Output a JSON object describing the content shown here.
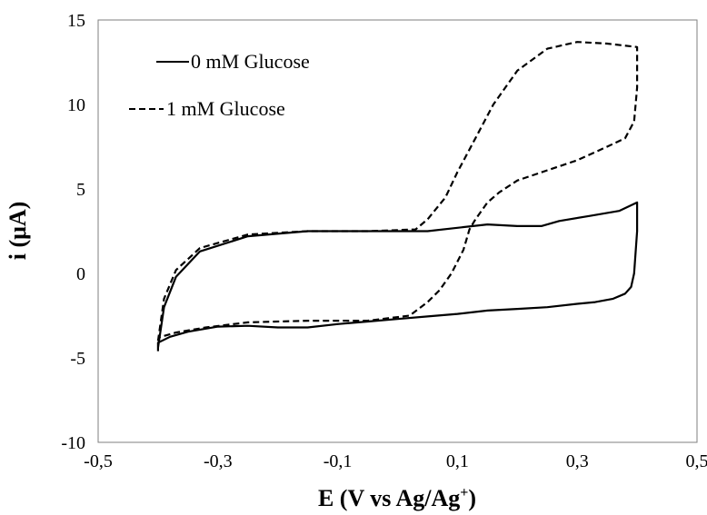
{
  "chart_data": {
    "type": "line",
    "title": "",
    "xlabel_parts": {
      "main": "E (V vs Ag/Ag",
      "sup": "+",
      "end": ")"
    },
    "ylabel": "i (μA)",
    "xlim": [
      -0.5,
      0.5
    ],
    "ylim": [
      -10,
      15
    ],
    "xticks": [
      -0.5,
      -0.3,
      -0.1,
      0.1,
      0.3,
      0.5
    ],
    "xtick_labels": [
      "-0,5",
      "-0,3",
      "-0,1",
      "0,1",
      "0,3",
      "0,5"
    ],
    "yticks": [
      -10,
      -5,
      0,
      5,
      10,
      15
    ],
    "ytick_labels": [
      "-10",
      "-5",
      "0",
      "5",
      "10",
      "15"
    ],
    "grid": false,
    "legend_position": "top-left",
    "series": [
      {
        "name": "0 mM Glucose",
        "style": "solid",
        "color": "#000000",
        "x": [
          -0.4,
          -0.39,
          -0.37,
          -0.33,
          -0.25,
          -0.15,
          -0.05,
          0.05,
          0.1,
          0.15,
          0.2,
          0.24,
          0.27,
          0.32,
          0.37,
          0.4,
          0.4,
          0.395,
          0.39,
          0.38,
          0.36,
          0.33,
          0.3,
          0.25,
          0.2,
          0.15,
          0.1,
          0.05,
          0.0,
          -0.05,
          -0.1,
          -0.15,
          -0.2,
          -0.25,
          -0.3,
          -0.35,
          -0.38,
          -0.4,
          -0.4
        ],
        "y": [
          -4.4,
          -2.0,
          -0.2,
          1.3,
          2.2,
          2.5,
          2.5,
          2.5,
          2.7,
          2.9,
          2.8,
          2.8,
          3.1,
          3.4,
          3.7,
          4.2,
          2.5,
          0.0,
          -0.8,
          -1.2,
          -1.5,
          -1.7,
          -1.8,
          -2.0,
          -2.1,
          -2.2,
          -2.4,
          -2.55,
          -2.7,
          -2.85,
          -3.0,
          -3.2,
          -3.2,
          -3.1,
          -3.15,
          -3.45,
          -3.75,
          -4.1,
          -4.6
        ]
      },
      {
        "name": "1 mM Glucose",
        "style": "dashed",
        "color": "#000000",
        "x": [
          -0.4,
          -0.39,
          -0.37,
          -0.33,
          -0.25,
          -0.15,
          -0.05,
          0.03,
          0.05,
          0.08,
          0.1,
          0.13,
          0.16,
          0.2,
          0.25,
          0.3,
          0.35,
          0.4,
          0.4,
          0.395,
          0.38,
          0.35,
          0.3,
          0.25,
          0.2,
          0.17,
          0.15,
          0.13,
          0.12,
          0.11,
          0.09,
          0.07,
          0.05,
          0.02,
          -0.05,
          -0.15,
          -0.25,
          -0.32,
          -0.37,
          -0.4
        ],
        "y": [
          -4.0,
          -1.5,
          0.2,
          1.5,
          2.3,
          2.5,
          2.5,
          2.6,
          3.2,
          4.5,
          6.0,
          8.0,
          10.0,
          12.0,
          13.3,
          13.7,
          13.6,
          13.4,
          11.0,
          9.0,
          8.0,
          7.5,
          6.7,
          6.1,
          5.5,
          4.8,
          4.2,
          3.2,
          2.6,
          1.4,
          0.0,
          -1.0,
          -1.7,
          -2.5,
          -2.8,
          -2.8,
          -2.9,
          -3.2,
          -3.5,
          -3.8
        ]
      }
    ]
  }
}
